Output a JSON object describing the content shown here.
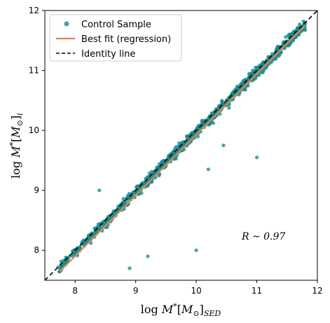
{
  "chart_data": {
    "type": "scatter",
    "xlabel": "log M*[M⊙]SED",
    "ylabel": "log M*[M⊙]i",
    "xlim": [
      7.5,
      12
    ],
    "ylim": [
      7.5,
      12
    ],
    "x_ticks": [
      "8",
      "9",
      "10",
      "11",
      "12"
    ],
    "y_ticks": [
      "8",
      "9",
      "10",
      "11",
      "12"
    ],
    "grid": false,
    "legend_position": "upper-left",
    "annotation": "R ~ 0.97",
    "colors": {
      "scatter": "#178a8a",
      "fit": "#f07f50",
      "identity": "#000000"
    },
    "series": [
      {
        "name": "Control Sample",
        "kind": "scatter",
        "note_points": "dense cloud along identity line; outliers listed",
        "x_range": [
          7.7,
          11.8
        ],
        "outliers": [
          {
            "x": 8.9,
            "y": 7.7
          },
          {
            "x": 9.2,
            "y": 7.9
          },
          {
            "x": 10.0,
            "y": 8.0
          },
          {
            "x": 11.0,
            "y": 9.55
          },
          {
            "x": 10.2,
            "y": 9.35
          },
          {
            "x": 8.4,
            "y": 9.0
          },
          {
            "x": 10.45,
            "y": 9.75
          }
        ]
      },
      {
        "name": "Best fit (regression)",
        "kind": "line",
        "x": [
          7.75,
          11.8
        ],
        "y": [
          7.65,
          11.75
        ]
      },
      {
        "name": "Identity line",
        "kind": "dashed-line",
        "x": [
          7.5,
          12
        ],
        "y": [
          7.5,
          12
        ]
      }
    ]
  }
}
